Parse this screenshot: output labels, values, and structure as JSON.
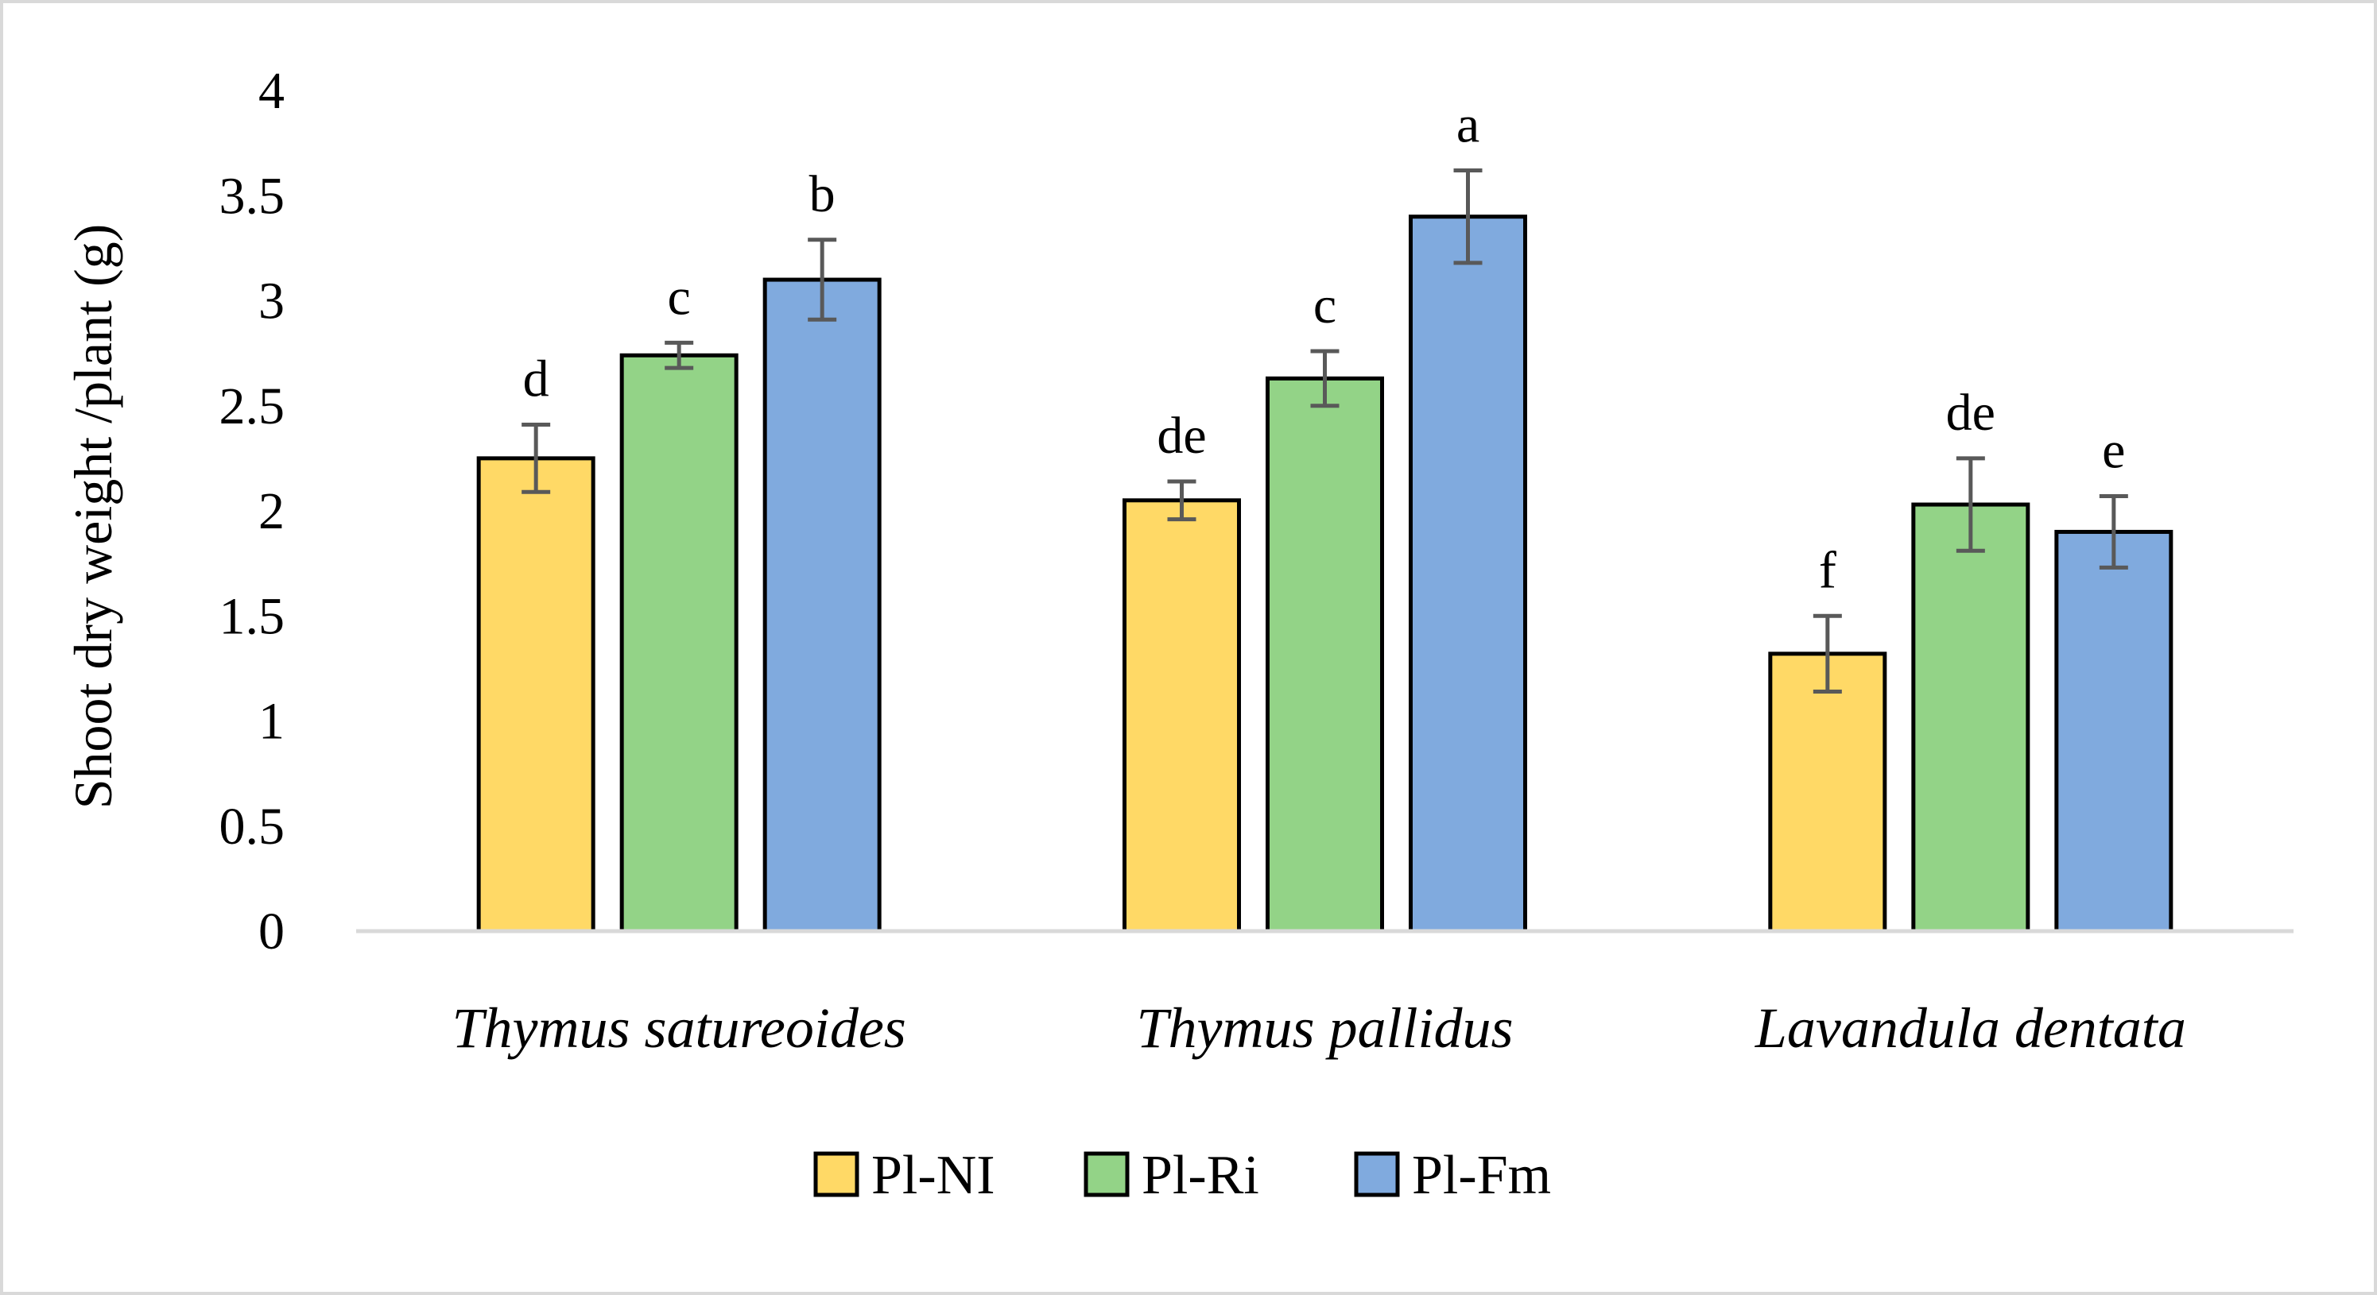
{
  "chart_data": {
    "type": "bar",
    "title": "",
    "xlabel": "",
    "ylabel": "Shoot dry weight /plant (g)",
    "ylim": [
      0,
      4
    ],
    "yticks": [
      "0",
      "0.5",
      "1",
      "1.5",
      "2",
      "2.5",
      "3",
      "3.5",
      "4"
    ],
    "grid": false,
    "legend_position": "bottom",
    "categories": [
      "Thymus satureoides",
      "Thymus pallidus",
      "Lavandula dentata"
    ],
    "series": [
      {
        "name": "Pl-NI",
        "color": "#ffd966",
        "values": [
          2.25,
          2.05,
          1.32
        ],
        "errors": [
          0.16,
          0.09,
          0.18
        ],
        "letters": [
          "d",
          "de",
          "f"
        ]
      },
      {
        "name": "Pl-Ri",
        "color": "#93d387",
        "values": [
          2.74,
          2.63,
          2.03
        ],
        "errors": [
          0.06,
          0.13,
          0.22
        ],
        "letters": [
          "c",
          "c",
          "de"
        ]
      },
      {
        "name": "Pl-Fm",
        "color": "#80aade",
        "values": [
          3.1,
          3.4,
          1.9
        ],
        "errors": [
          0.19,
          0.22,
          0.17
        ],
        "letters": [
          "b",
          "a",
          "e"
        ]
      }
    ]
  }
}
